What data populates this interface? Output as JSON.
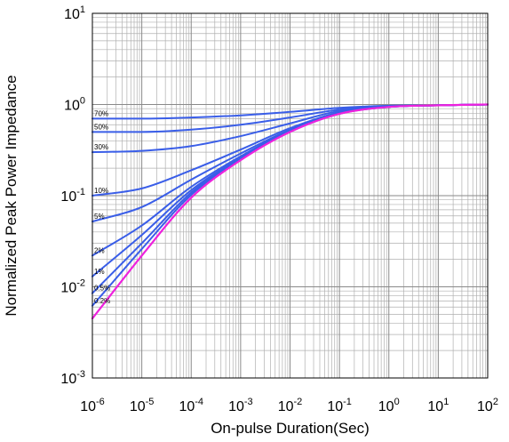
{
  "chart_data": {
    "type": "line",
    "xlabel": "On-pulse Duration(Sec)",
    "ylabel": "Normalized Peak Power Impedance",
    "x_scale": "log",
    "y_scale": "log",
    "xlim": [
      1e-06,
      100
    ],
    "ylim": [
      0.001,
      10
    ],
    "x_ticks": [
      {
        "base": "10",
        "exp": "-6"
      },
      {
        "base": "10",
        "exp": "-5"
      },
      {
        "base": "10",
        "exp": "-4"
      },
      {
        "base": "10",
        "exp": "-3"
      },
      {
        "base": "10",
        "exp": "-2"
      },
      {
        "base": "10",
        "exp": "-1"
      },
      {
        "base": "10",
        "exp": "0"
      },
      {
        "base": "10",
        "exp": "1"
      },
      {
        "base": "10",
        "exp": "2"
      }
    ],
    "y_ticks": [
      {
        "base": "10",
        "exp": "-3"
      },
      {
        "base": "10",
        "exp": "-2"
      },
      {
        "base": "10",
        "exp": "-1"
      },
      {
        "base": "10",
        "exp": "0"
      },
      {
        "base": "10",
        "exp": "1"
      }
    ],
    "grid": true,
    "colors": {
      "duty_series": "#3a5ee8",
      "single_pulse": "#ee22dd",
      "grid": "#b0b0b0"
    },
    "x": [
      1e-06,
      1e-05,
      0.0001,
      0.001,
      0.01,
      0.1,
      1,
      10,
      100
    ],
    "series": [
      {
        "name": "70%",
        "color": "#3a5ee8",
        "values": [
          0.7,
          0.7,
          0.72,
          0.76,
          0.83,
          0.92,
          0.97,
          0.98,
          1.0
        ]
      },
      {
        "name": "50%",
        "color": "#3a5ee8",
        "values": [
          0.5,
          0.5,
          0.53,
          0.6,
          0.72,
          0.88,
          0.96,
          0.98,
          1.0
        ]
      },
      {
        "name": "30%",
        "color": "#3a5ee8",
        "values": [
          0.3,
          0.31,
          0.35,
          0.45,
          0.62,
          0.85,
          0.95,
          0.98,
          1.0
        ]
      },
      {
        "name": "10%",
        "color": "#3a5ee8",
        "values": [
          0.1,
          0.12,
          0.19,
          0.32,
          0.55,
          0.82,
          0.95,
          0.98,
          1.0
        ]
      },
      {
        "name": "5%",
        "color": "#3a5ee8",
        "values": [
          0.052,
          0.075,
          0.15,
          0.29,
          0.53,
          0.81,
          0.94,
          0.98,
          1.0
        ]
      },
      {
        "name": "2%",
        "color": "#3a5ee8",
        "values": [
          0.022,
          0.047,
          0.125,
          0.27,
          0.52,
          0.8,
          0.94,
          0.98,
          1.0
        ]
      },
      {
        "name": "1%",
        "color": "#3a5ee8",
        "values": [
          0.013,
          0.037,
          0.115,
          0.26,
          0.51,
          0.8,
          0.94,
          0.98,
          1.0
        ]
      },
      {
        "name": "0.5%",
        "color": "#3a5ee8",
        "values": [
          0.0085,
          0.03,
          0.108,
          0.255,
          0.51,
          0.8,
          0.94,
          0.98,
          1.0
        ]
      },
      {
        "name": "0.2%",
        "color": "#3a5ee8",
        "values": [
          0.0062,
          0.026,
          0.102,
          0.25,
          0.5,
          0.79,
          0.94,
          0.98,
          1.0
        ]
      },
      {
        "name": "",
        "color": "#ee22dd",
        "values": [
          0.0045,
          0.022,
          0.095,
          0.245,
          0.5,
          0.79,
          0.94,
          0.98,
          1.0
        ]
      }
    ]
  }
}
